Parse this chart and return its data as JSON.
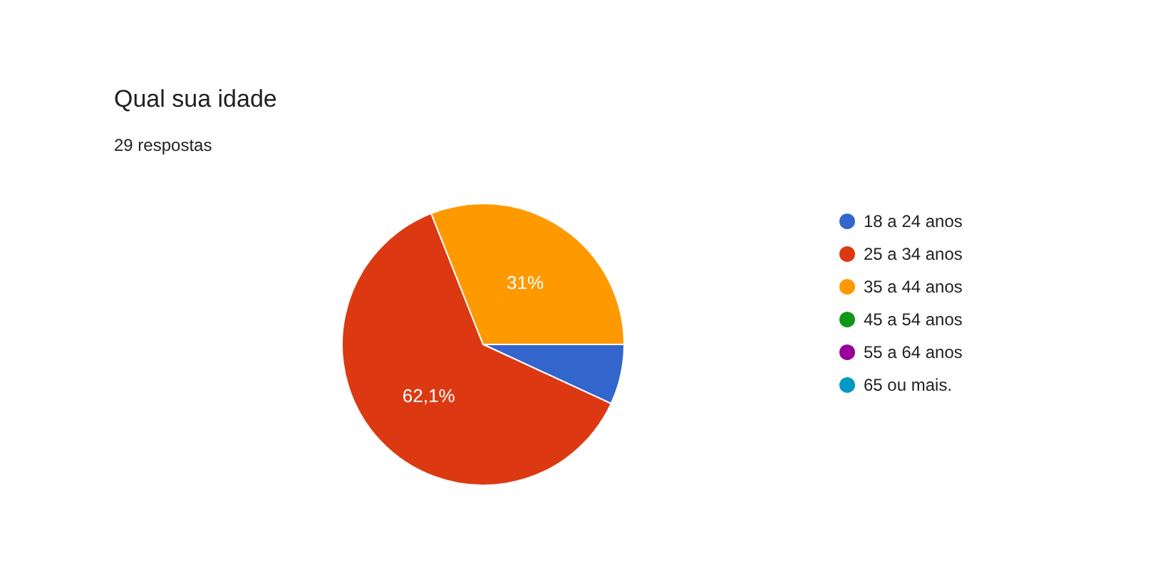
{
  "chart_data": {
    "type": "pie",
    "title": "Qual sua idade",
    "subtitle": "29 respostas",
    "categories": [
      "18 a 24 anos",
      "25 a 34 anos",
      "35 a 44 anos",
      "45 a 54 anos",
      "55 a 64 anos",
      "65 ou mais."
    ],
    "values": [
      6.9,
      62.1,
      31,
      0,
      0,
      0
    ],
    "colors": [
      "#3366cc",
      "#dc3912",
      "#ff9900",
      "#109618",
      "#990099",
      "#0099c6"
    ],
    "value_labels": [
      null,
      "62,1%",
      "31%",
      null,
      null,
      null
    ],
    "legend": "right"
  }
}
